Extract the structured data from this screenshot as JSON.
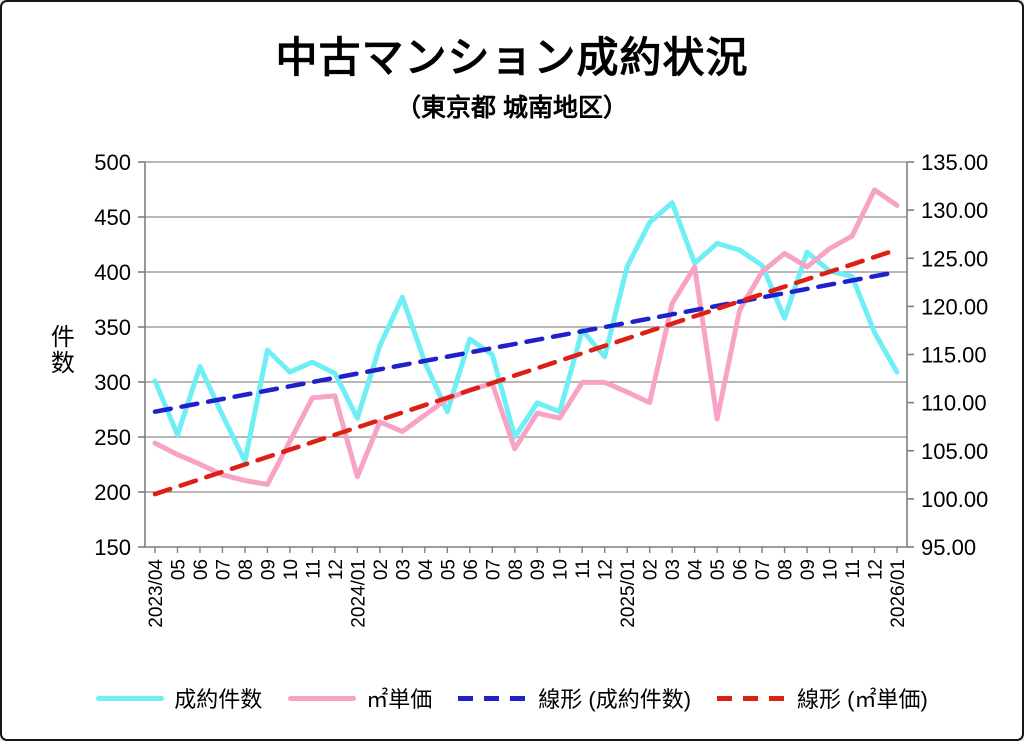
{
  "title": "中古マンション成約状況",
  "subtitle": "（東京都 城南地区）",
  "chart_data": {
    "type": "line",
    "categories": [
      "2023/04",
      "05",
      "06",
      "07",
      "08",
      "09",
      "10",
      "11",
      "12",
      "2024/01",
      "02",
      "03",
      "04",
      "05",
      "06",
      "07",
      "08",
      "09",
      "10",
      "11",
      "12",
      "2025/01",
      "02",
      "03",
      "04",
      "05",
      "06",
      "07",
      "08",
      "09",
      "10",
      "11",
      "12",
      "2026/01"
    ],
    "series": [
      {
        "name": "成約件数",
        "axis": "left",
        "color": "#6FEFF5",
        "style": "solid",
        "values": [
          301,
          252,
          314,
          270,
          228,
          329,
          309,
          318,
          308,
          267,
          333,
          377,
          318,
          273,
          339,
          325,
          250,
          281,
          273,
          347,
          323,
          405,
          445,
          463,
          408,
          426,
          420,
          406,
          358,
          418,
          401,
          396,
          345,
          309
        ]
      },
      {
        "name": "㎡単価",
        "axis": "right",
        "color": "#F7A3C5",
        "style": "solid",
        "values": [
          105.8,
          104.6,
          103.6,
          102.5,
          101.9,
          101.5,
          106.0,
          110.5,
          110.7,
          102.3,
          108.0,
          107.0,
          108.7,
          110.4,
          111.3,
          112.0,
          105.2,
          108.9,
          108.4,
          112.1,
          112.1,
          111.1,
          110.0,
          120.3,
          124.1,
          108.3,
          119.6,
          123.6,
          125.5,
          124.1,
          126.0,
          127.3,
          132.1,
          130.5
        ]
      },
      {
        "name": "線形 (成約件数)",
        "axis": "left",
        "color": "#2121CC",
        "style": "dashed",
        "trend_start": 273,
        "trend_end": 400
      },
      {
        "name": "線形 (㎡単価)",
        "axis": "right",
        "color": "#DD2015",
        "style": "dashed",
        "trend_start": 100.5,
        "trend_end": 125.9
      }
    ],
    "left_axis": {
      "label": "件数",
      "min": 150,
      "max": 500,
      "step": 50,
      "ticks": [
        "500",
        "450",
        "400",
        "350",
        "300",
        "250",
        "200",
        "150"
      ]
    },
    "right_axis": {
      "min": 95,
      "max": 135,
      "step": 5,
      "ticks": [
        "135.00",
        "130.00",
        "125.00",
        "120.00",
        "115.00",
        "110.00",
        "105.00",
        "100.00",
        "95.00"
      ]
    },
    "grid": true,
    "legend_position": "bottom",
    "grid_color": "#8C8C8C",
    "axis_color": "#7F7F7F",
    "tick_label_color": "#000000"
  }
}
